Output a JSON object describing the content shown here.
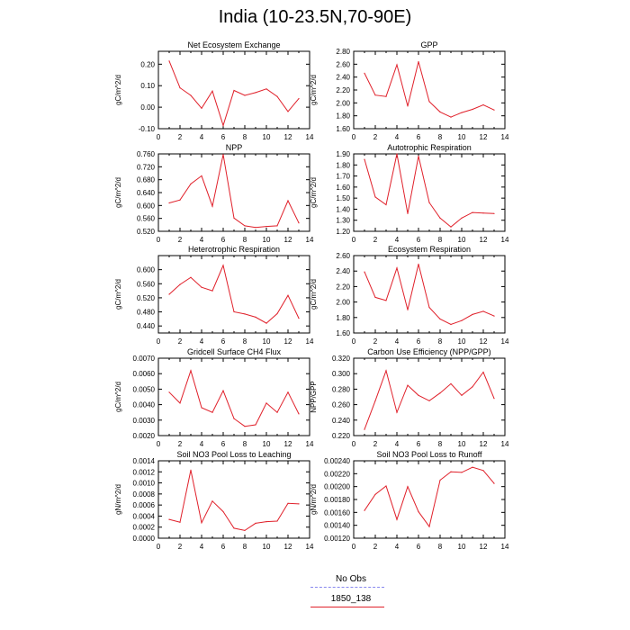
{
  "title": "India (10-23.5N,70-90E)",
  "legend": {
    "placement": "bottom-center",
    "entries": [
      {
        "label": "No Obs",
        "color": "#8888ee",
        "style": "dashed"
      },
      {
        "label": "1850_138",
        "color": "#e0202a",
        "style": "solid"
      }
    ]
  },
  "series_color": "#e0202a",
  "chart_data": [
    {
      "type": "line",
      "title": "Net Ecosystem Exchange",
      "ylabel": "gC/m^2/d",
      "xlim": [
        0,
        14
      ],
      "xticks": [
        "0",
        "2",
        "4",
        "6",
        "8",
        "10",
        "12",
        "14"
      ],
      "ylim": [
        -0.1,
        0.26
      ],
      "yticks": [
        -0.1,
        0.0,
        0.1,
        0.2
      ],
      "ytick_labels": [
        "-0.10",
        "0.00",
        "0.10",
        "0.20"
      ],
      "x": [
        1,
        2,
        3,
        4,
        5,
        6,
        7,
        8,
        9,
        10,
        11,
        12,
        13
      ],
      "series": [
        {
          "name": "1850_138",
          "values": [
            0.215,
            0.09,
            0.055,
            -0.005,
            0.075,
            -0.085,
            0.078,
            0.055,
            0.068,
            0.085,
            0.05,
            -0.02,
            0.04
          ]
        }
      ]
    },
    {
      "type": "line",
      "title": "GPP",
      "ylabel": "gC/m^2/d",
      "xlim": [
        0,
        14
      ],
      "xticks": [
        "0",
        "2",
        "4",
        "6",
        "8",
        "10",
        "12",
        "14"
      ],
      "ylim": [
        1.6,
        2.8
      ],
      "yticks": [
        1.6,
        1.8,
        2.0,
        2.2,
        2.4,
        2.6,
        2.8
      ],
      "ytick_labels": [
        "1.60",
        "1.80",
        "2.00",
        "2.20",
        "2.40",
        "2.60",
        "2.80"
      ],
      "x": [
        1,
        2,
        3,
        4,
        5,
        6,
        7,
        8,
        9,
        10,
        11,
        12,
        13
      ],
      "series": [
        {
          "name": "1850_138",
          "values": [
            2.46,
            2.12,
            2.1,
            2.59,
            1.95,
            2.64,
            2.02,
            1.86,
            1.78,
            1.85,
            1.9,
            1.97,
            1.89
          ]
        }
      ]
    },
    {
      "type": "line",
      "title": "NPP",
      "ylabel": "gC/m^2/d",
      "xlim": [
        0,
        14
      ],
      "xticks": [
        "0",
        "2",
        "4",
        "6",
        "8",
        "10",
        "12",
        "14"
      ],
      "ylim": [
        0.52,
        0.76
      ],
      "yticks": [
        0.52,
        0.56,
        0.6,
        0.64,
        0.68,
        0.72,
        0.76
      ],
      "ytick_labels": [
        "0.520",
        "0.560",
        "0.600",
        "0.640",
        "0.680",
        "0.720",
        "0.760"
      ],
      "x": [
        1,
        2,
        3,
        4,
        5,
        6,
        7,
        8,
        9,
        10,
        11,
        12,
        13
      ],
      "series": [
        {
          "name": "1850_138",
          "values": [
            0.608,
            0.617,
            0.667,
            0.692,
            0.598,
            0.758,
            0.561,
            0.537,
            0.532,
            0.535,
            0.537,
            0.615,
            0.546
          ]
        }
      ]
    },
    {
      "type": "line",
      "title": "Autotrophic Respiration",
      "ylabel": "gC/m^2/d",
      "xlim": [
        0,
        14
      ],
      "xticks": [
        "0",
        "2",
        "4",
        "6",
        "8",
        "10",
        "12",
        "14"
      ],
      "ylim": [
        1.2,
        1.9
      ],
      "yticks": [
        1.2,
        1.3,
        1.4,
        1.5,
        1.6,
        1.7,
        1.8,
        1.9
      ],
      "ytick_labels": [
        "1.20",
        "1.30",
        "1.40",
        "1.50",
        "1.60",
        "1.70",
        "1.80",
        "1.90"
      ],
      "x": [
        1,
        2,
        3,
        4,
        5,
        6,
        7,
        8,
        9,
        10,
        11,
        12,
        13
      ],
      "series": [
        {
          "name": "1850_138",
          "values": [
            1.85,
            1.51,
            1.44,
            1.9,
            1.36,
            1.88,
            1.46,
            1.32,
            1.24,
            1.32,
            1.37,
            1.365,
            1.36
          ]
        }
      ]
    },
    {
      "type": "line",
      "title": "Heterotrophic Respiration",
      "ylabel": "gC/m^2/d",
      "xlim": [
        0,
        14
      ],
      "xticks": [
        "0",
        "2",
        "4",
        "6",
        "8",
        "10",
        "12",
        "14"
      ],
      "ylim": [
        0.42,
        0.64
      ],
      "yticks": [
        0.44,
        0.48,
        0.52,
        0.56,
        0.6
      ],
      "ytick_labels": [
        "0.440",
        "0.480",
        "0.520",
        "0.560",
        "0.600"
      ],
      "x": [
        1,
        2,
        3,
        4,
        5,
        6,
        7,
        8,
        9,
        10,
        11,
        12,
        13
      ],
      "series": [
        {
          "name": "1850_138",
          "values": [
            0.53,
            0.558,
            0.578,
            0.55,
            0.54,
            0.612,
            0.48,
            0.474,
            0.465,
            0.448,
            0.475,
            0.527,
            0.462
          ]
        }
      ]
    },
    {
      "type": "line",
      "title": "Ecosystem Respiration",
      "ylabel": "gC/m^2/d",
      "xlim": [
        0,
        14
      ],
      "xticks": [
        "0",
        "2",
        "4",
        "6",
        "8",
        "10",
        "12",
        "14"
      ],
      "ylim": [
        1.6,
        2.6
      ],
      "yticks": [
        1.6,
        1.8,
        2.0,
        2.2,
        2.4,
        2.6
      ],
      "ytick_labels": [
        "1.60",
        "1.80",
        "2.00",
        "2.20",
        "2.40",
        "2.60"
      ],
      "x": [
        1,
        2,
        3,
        4,
        5,
        6,
        7,
        8,
        9,
        10,
        11,
        12,
        13
      ],
      "series": [
        {
          "name": "1850_138",
          "values": [
            2.39,
            2.06,
            2.02,
            2.44,
            1.9,
            2.49,
            1.93,
            1.78,
            1.71,
            1.76,
            1.84,
            1.88,
            1.82
          ]
        }
      ]
    },
    {
      "type": "line",
      "title": "Gridcell Surface CH4 Flux",
      "ylabel": "gC/m^2/d",
      "xlim": [
        0,
        14
      ],
      "xticks": [
        "0",
        "2",
        "4",
        "6",
        "8",
        "10",
        "12",
        "14"
      ],
      "ylim": [
        0.002,
        0.007
      ],
      "yticks": [
        0.002,
        0.003,
        0.004,
        0.005,
        0.006,
        0.007
      ],
      "ytick_labels": [
        "0.0020",
        "0.0030",
        "0.0040",
        "0.0050",
        "0.0060",
        "0.0070"
      ],
      "x": [
        1,
        2,
        3,
        4,
        5,
        6,
        7,
        8,
        9,
        10,
        11,
        12,
        13
      ],
      "series": [
        {
          "name": "1850_138",
          "values": [
            0.0048,
            0.0041,
            0.0062,
            0.0038,
            0.0035,
            0.0049,
            0.0031,
            0.0026,
            0.0027,
            0.0041,
            0.0035,
            0.0048,
            0.0034
          ]
        }
      ]
    },
    {
      "type": "line",
      "title": "Carbon Use Efficiency (NPP/GPP)",
      "ylabel": "NPP/GPP",
      "xlim": [
        0,
        14
      ],
      "xticks": [
        "0",
        "2",
        "4",
        "6",
        "8",
        "10",
        "12",
        "14"
      ],
      "ylim": [
        0.22,
        0.32
      ],
      "yticks": [
        0.22,
        0.24,
        0.26,
        0.28,
        0.3,
        0.32
      ],
      "ytick_labels": [
        "0.220",
        "0.240",
        "0.260",
        "0.280",
        "0.300",
        "0.320"
      ],
      "x": [
        1,
        2,
        3,
        4,
        5,
        6,
        7,
        8,
        9,
        10,
        11,
        12,
        13
      ],
      "series": [
        {
          "name": "1850_138",
          "values": [
            0.228,
            0.265,
            0.304,
            0.25,
            0.285,
            0.272,
            0.265,
            0.275,
            0.287,
            0.272,
            0.283,
            0.302,
            0.268
          ]
        }
      ]
    },
    {
      "type": "line",
      "title": "Soil NO3 Pool Loss to Leaching",
      "ylabel": "gN/m^2/d",
      "xlim": [
        0,
        14
      ],
      "xticks": [
        "0",
        "2",
        "4",
        "6",
        "8",
        "10",
        "12",
        "14"
      ],
      "ylim": [
        0.0,
        0.0014
      ],
      "yticks": [
        0,
        0.0002,
        0.0004,
        0.0006,
        0.0008,
        0.001,
        0.0012,
        0.0014
      ],
      "ytick_labels": [
        "0.0000",
        "0.0002",
        "0.0004",
        "0.0006",
        "0.0008",
        "0.0010",
        "0.0012",
        "0.0014"
      ],
      "x": [
        1,
        2,
        3,
        4,
        5,
        6,
        7,
        8,
        9,
        10,
        11,
        12,
        13
      ],
      "series": [
        {
          "name": "1850_138",
          "values": [
            0.00034,
            0.00029,
            0.00123,
            0.00028,
            0.00067,
            0.00048,
            0.00018,
            0.00014,
            0.00027,
            0.0003,
            0.00031,
            0.00063,
            0.00062
          ]
        }
      ]
    },
    {
      "type": "line",
      "title": "Soil NO3 Pool Loss to Runoff",
      "ylabel": "gN/m^2/d",
      "xlim": [
        0,
        14
      ],
      "xticks": [
        "0",
        "2",
        "4",
        "6",
        "8",
        "10",
        "12",
        "14"
      ],
      "ylim": [
        0.0012,
        0.0024
      ],
      "yticks": [
        0.0012,
        0.0014,
        0.0016,
        0.0018,
        0.002,
        0.0022,
        0.0024
      ],
      "ytick_labels": [
        "0.00120",
        "0.00140",
        "0.00160",
        "0.00180",
        "0.00200",
        "0.00220",
        "0.00240"
      ],
      "x": [
        1,
        2,
        3,
        4,
        5,
        6,
        7,
        8,
        9,
        10,
        11,
        12,
        13
      ],
      "series": [
        {
          "name": "1850_138",
          "values": [
            0.00163,
            0.00188,
            0.00201,
            0.00149,
            0.002,
            0.00161,
            0.00138,
            0.0021,
            0.00223,
            0.00222,
            0.0023,
            0.00225,
            0.00205
          ]
        }
      ]
    }
  ]
}
